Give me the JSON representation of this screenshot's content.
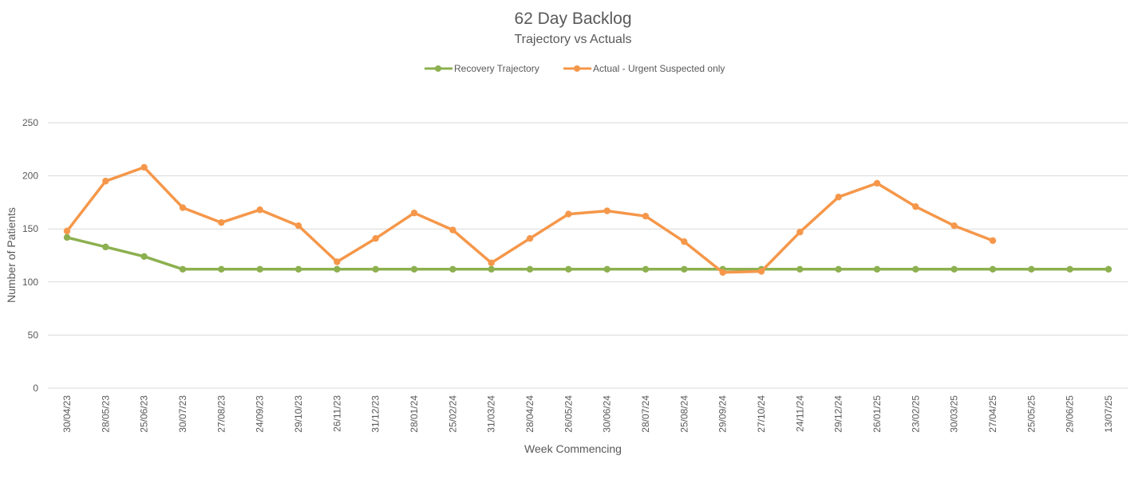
{
  "chart_data": {
    "type": "line",
    "title": "62 Day Backlog",
    "subtitle": "Trajectory vs Actuals",
    "xlabel": "Week Commencing",
    "ylabel": "Number of Patients",
    "ylim": [
      0,
      250
    ],
    "yticks": [
      0,
      50,
      100,
      150,
      200,
      250
    ],
    "grid": true,
    "legend_position": "top",
    "categories": [
      "30/04/23",
      "28/05/23",
      "25/06/23",
      "30/07/23",
      "27/08/23",
      "24/09/23",
      "29/10/23",
      "26/11/23",
      "31/12/23",
      "28/01/24",
      "25/02/24",
      "31/03/24",
      "28/04/24",
      "26/05/24",
      "30/06/24",
      "28/07/24",
      "25/08/24",
      "29/09/24",
      "27/10/24",
      "24/11/24",
      "29/12/24",
      "26/01/25",
      "23/02/25",
      "30/03/25",
      "27/04/25",
      "25/05/25",
      "29/06/25",
      "13/07/25"
    ],
    "series": [
      {
        "name": "Recovery Trajectory",
        "color": "#8cb04f",
        "values": [
          142,
          133,
          124,
          112,
          112,
          112,
          112,
          112,
          112,
          112,
          112,
          112,
          112,
          112,
          112,
          112,
          112,
          112,
          112,
          112,
          112,
          112,
          112,
          112,
          112,
          112,
          112,
          112
        ]
      },
      {
        "name": "Actual - Urgent Suspected only",
        "color": "#f5974a",
        "values": [
          148,
          195,
          208,
          170,
          156,
          168,
          153,
          119,
          141,
          165,
          149,
          118,
          141,
          164,
          167,
          162,
          138,
          109,
          110,
          147,
          180,
          193,
          171,
          153,
          139,
          null,
          null,
          null
        ]
      }
    ]
  }
}
